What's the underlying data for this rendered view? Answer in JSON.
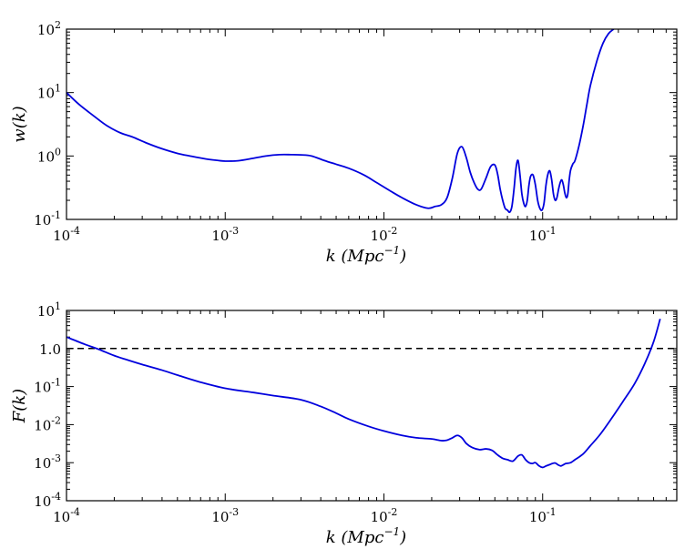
{
  "chart_data": [
    {
      "type": "line",
      "xlabel": "k (Mpc^-1)",
      "ylabel": "w(k)",
      "xscale": "log",
      "yscale": "log",
      "xlim": [
        0.0001,
        0.7
      ],
      "ylim": [
        0.1,
        100
      ],
      "xticks": [
        {
          "base": "10",
          "exp": "-4",
          "value": 0.0001
        },
        {
          "base": "10",
          "exp": "-3",
          "value": 0.001
        },
        {
          "base": "10",
          "exp": "-2",
          "value": 0.01
        },
        {
          "base": "10",
          "exp": "-1",
          "value": 0.1
        }
      ],
      "yticks": [
        {
          "base": "10",
          "exp": "-1",
          "value": 0.1
        },
        {
          "base": "10",
          "exp": "0",
          "value": 1
        },
        {
          "base": "10",
          "exp": "1",
          "value": 10
        },
        {
          "base": "10",
          "exp": "2",
          "value": 100
        }
      ],
      "grid": false,
      "series": [
        {
          "color": "#0000dd",
          "x": [
            0.0001,
            0.00012,
            0.00015,
            0.00018,
            0.00022,
            0.00026,
            0.00032,
            0.0004,
            0.0005,
            0.0006,
            0.00075,
            0.0009,
            0.001,
            0.0012,
            0.0015,
            0.0018,
            0.0022,
            0.0026,
            0.003,
            0.0035,
            0.0042,
            0.005,
            0.006,
            0.0075,
            0.009,
            0.011,
            0.013,
            0.016,
            0.019,
            0.021,
            0.023,
            0.025,
            0.027,
            0.029,
            0.031,
            0.033,
            0.035,
            0.037,
            0.039,
            0.041,
            0.044,
            0.047,
            0.05,
            0.052,
            0.054,
            0.056,
            0.058,
            0.06,
            0.062,
            0.064,
            0.066,
            0.068,
            0.07,
            0.072,
            0.074,
            0.076,
            0.078,
            0.08,
            0.082,
            0.084,
            0.087,
            0.09,
            0.093,
            0.096,
            0.099,
            0.102,
            0.105,
            0.108,
            0.111,
            0.114,
            0.117,
            0.12,
            0.123,
            0.126,
            0.129,
            0.132,
            0.135,
            0.138,
            0.141,
            0.144,
            0.147,
            0.15,
            0.155,
            0.16,
            0.17,
            0.18,
            0.19,
            0.2,
            0.22,
            0.24,
            0.26,
            0.28
          ],
          "y": [
            10,
            6.5,
            4.2,
            3.0,
            2.3,
            2.0,
            1.6,
            1.3,
            1.1,
            1.0,
            0.9,
            0.85,
            0.83,
            0.84,
            0.92,
            1.0,
            1.05,
            1.05,
            1.04,
            1.0,
            0.85,
            0.74,
            0.64,
            0.5,
            0.38,
            0.28,
            0.22,
            0.17,
            0.15,
            0.16,
            0.17,
            0.22,
            0.45,
            1.1,
            1.4,
            0.95,
            0.55,
            0.38,
            0.3,
            0.3,
            0.45,
            0.68,
            0.72,
            0.52,
            0.3,
            0.2,
            0.15,
            0.14,
            0.13,
            0.16,
            0.3,
            0.65,
            0.85,
            0.5,
            0.25,
            0.18,
            0.16,
            0.2,
            0.35,
            0.48,
            0.5,
            0.35,
            0.2,
            0.15,
            0.14,
            0.18,
            0.35,
            0.52,
            0.58,
            0.42,
            0.25,
            0.2,
            0.22,
            0.3,
            0.38,
            0.42,
            0.35,
            0.26,
            0.22,
            0.25,
            0.42,
            0.6,
            0.75,
            0.85,
            1.5,
            3.0,
            6.5,
            13,
            32,
            60,
            85,
            100
          ]
        }
      ]
    },
    {
      "type": "line",
      "xlabel": "k (Mpc^-1)",
      "ylabel": "F(k)",
      "xscale": "log",
      "yscale": "log",
      "xlim": [
        0.0001,
        0.7
      ],
      "ylim": [
        0.0001,
        10
      ],
      "xticks": [
        {
          "base": "10",
          "exp": "-4",
          "value": 0.0001
        },
        {
          "base": "10",
          "exp": "-3",
          "value": 0.001
        },
        {
          "base": "10",
          "exp": "-2",
          "value": 0.01
        },
        {
          "base": "10",
          "exp": "-1",
          "value": 0.1
        }
      ],
      "yticks": [
        {
          "base": "10",
          "exp": "-4",
          "value": 0.0001
        },
        {
          "base": "10",
          "exp": "-3",
          "value": 0.001
        },
        {
          "base": "10",
          "exp": "-2",
          "value": 0.01
        },
        {
          "base": "10",
          "exp": "-1",
          "value": 0.1
        },
        {
          "base": "1.0",
          "exp": "",
          "value": 1
        },
        {
          "base": "10",
          "exp": "1",
          "value": 10
        }
      ],
      "grid": false,
      "hline": {
        "y": 1.0,
        "style": "dashed",
        "color": "#000000"
      },
      "series": [
        {
          "color": "#0000dd",
          "x": [
            0.0001,
            0.00013,
            0.00016,
            0.0002,
            0.00025,
            0.0003,
            0.0004,
            0.0005,
            0.0007,
            0.001,
            0.0015,
            0.002,
            0.003,
            0.004,
            0.005,
            0.006,
            0.008,
            0.01,
            0.013,
            0.016,
            0.02,
            0.023,
            0.025,
            0.027,
            0.029,
            0.031,
            0.033,
            0.036,
            0.04,
            0.044,
            0.048,
            0.052,
            0.056,
            0.06,
            0.065,
            0.07,
            0.074,
            0.078,
            0.082,
            0.086,
            0.09,
            0.095,
            0.1,
            0.105,
            0.11,
            0.115,
            0.12,
            0.125,
            0.13,
            0.135,
            0.14,
            0.15,
            0.16,
            0.18,
            0.2,
            0.23,
            0.27,
            0.32,
            0.38,
            0.44,
            0.5,
            0.55
          ],
          "y": [
            2.0,
            1.3,
            0.95,
            0.65,
            0.48,
            0.38,
            0.27,
            0.2,
            0.13,
            0.09,
            0.07,
            0.058,
            0.045,
            0.03,
            0.02,
            0.014,
            0.009,
            0.0068,
            0.0052,
            0.0045,
            0.0042,
            0.0038,
            0.0039,
            0.0045,
            0.0052,
            0.0045,
            0.0032,
            0.0025,
            0.0022,
            0.0023,
            0.0021,
            0.0016,
            0.0013,
            0.0012,
            0.0011,
            0.0015,
            0.0016,
            0.0012,
            0.001,
            0.00095,
            0.001,
            0.00082,
            0.00075,
            0.00082,
            0.00088,
            0.00095,
            0.00098,
            0.00088,
            0.00082,
            0.00088,
            0.00095,
            0.001,
            0.0012,
            0.0017,
            0.0028,
            0.0055,
            0.014,
            0.04,
            0.12,
            0.4,
            1.5,
            6.0
          ]
        }
      ]
    }
  ]
}
